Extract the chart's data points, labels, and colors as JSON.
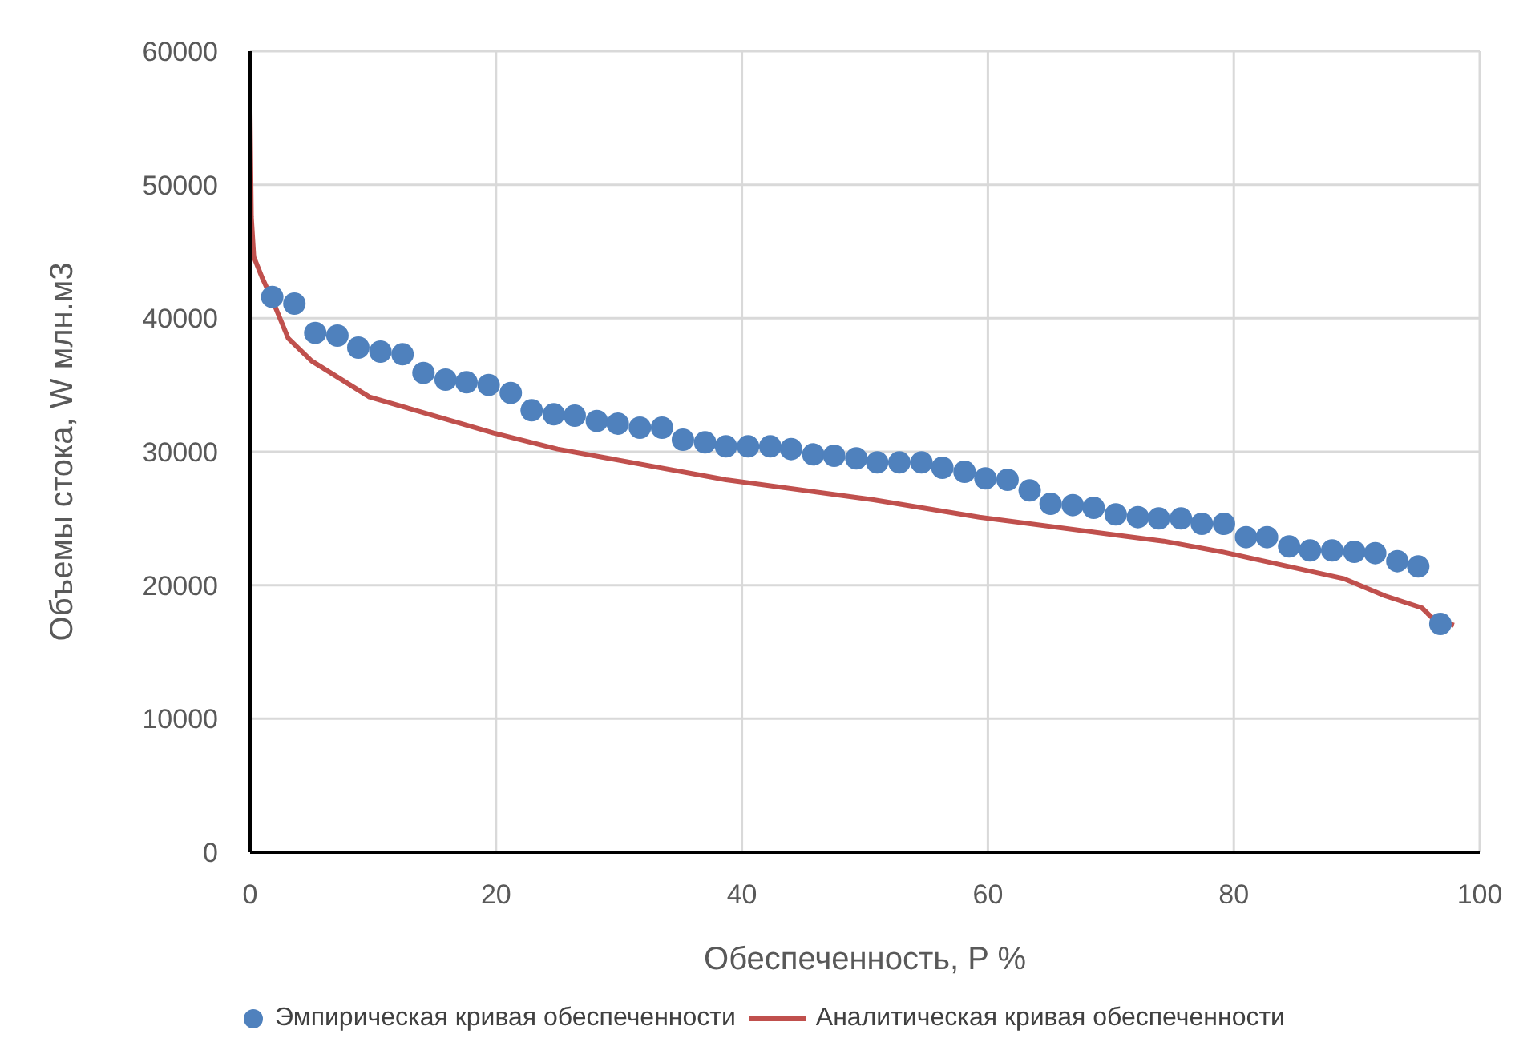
{
  "chart_data": {
    "type": "scatter",
    "xlabel": "Обеспеченность, P %",
    "ylabel": "Объемы стока, W млн.м3",
    "xlim": [
      0,
      100
    ],
    "xticks": [
      0,
      20,
      40,
      60,
      80,
      100
    ],
    "ylim": [
      0,
      60000
    ],
    "yticks": [
      0,
      10000,
      20000,
      30000,
      40000,
      50000,
      60000
    ],
    "grid": true,
    "legend": "bottom",
    "marker": "circle",
    "series": [
      {
        "name": "Эмпирическая кривая обеспеченности",
        "color": "#4f81bd",
        "x": [
          1.8,
          3.6,
          5.3,
          7.1,
          8.8,
          10.6,
          12.4,
          14.1,
          15.9,
          17.6,
          19.4,
          21.2,
          22.9,
          24.7,
          26.4,
          28.2,
          29.9,
          31.7,
          33.5,
          35.2,
          37.0,
          38.7,
          40.5,
          42.3,
          44.0,
          45.8,
          47.5,
          49.3,
          51.0,
          52.8,
          54.6,
          56.3,
          58.1,
          59.8,
          61.6,
          63.4,
          65.1,
          66.9,
          68.6,
          70.4,
          72.2,
          73.9,
          75.7,
          77.4,
          79.2,
          81.0,
          82.7,
          84.5,
          86.2,
          88.0,
          89.8,
          91.5,
          93.3,
          95.0,
          96.8
        ],
        "values": [
          41600,
          41100,
          38900,
          38700,
          37800,
          37500,
          37300,
          35900,
          35400,
          35200,
          35000,
          34400,
          33100,
          32800,
          32700,
          32300,
          32100,
          31800,
          31800,
          30900,
          30700,
          30400,
          30400,
          30400,
          30200,
          29800,
          29700,
          29500,
          29200,
          29200,
          29200,
          28800,
          28500,
          28000,
          27900,
          27100,
          26100,
          26000,
          25800,
          25300,
          25100,
          25000,
          25000,
          24600,
          24600,
          23600,
          23600,
          22900,
          22600,
          22600,
          22500,
          22400,
          21800,
          21400,
          17100
        ]
      },
      {
        "name": "Аналитическая кривая обеспеченности",
        "type": "line",
        "color": "#c0504d",
        "marker": "none",
        "line_style": "solid",
        "x": [
          0.0,
          0.1,
          0.3,
          1.0,
          1.8,
          3.1,
          5.0,
          9.7,
          19.8,
          25.0,
          38.7,
          50.7,
          59.3,
          70.9,
          74.3,
          79.0,
          88.9,
          92.3,
          95.3,
          96.2,
          97.9
        ],
        "values": [
          55500,
          47600,
          44600,
          43000,
          41400,
          38500,
          36800,
          34100,
          31400,
          30200,
          27900,
          26400,
          25100,
          23700,
          23300,
          22500,
          20500,
          19200,
          18300,
          17500,
          17000
        ]
      }
    ]
  }
}
